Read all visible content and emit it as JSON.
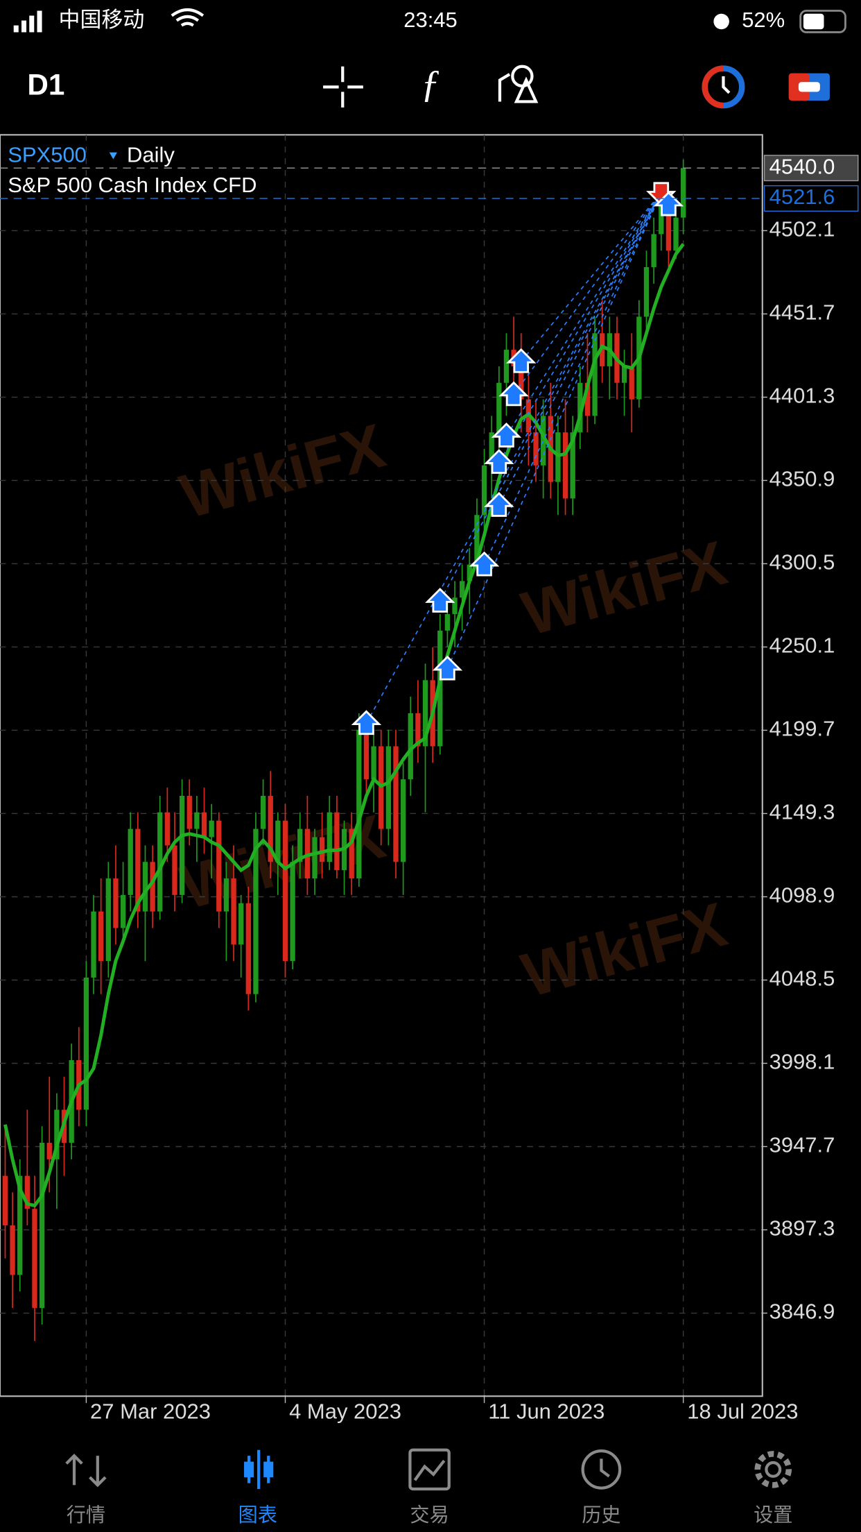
{
  "status_bar": {
    "carrier": "中国移动",
    "time": "23:45",
    "battery": "52%"
  },
  "toolbar": {
    "timeframe": "D1"
  },
  "chart_data": {
    "type": "candlestick",
    "symbol": "SPX500",
    "period": "Daily",
    "description": "S&P 500 Cash Index CFD",
    "watermark": "WikiFX",
    "up_color": "#1f9a1f",
    "down_color": "#d8291c",
    "grid": true,
    "xlim": [
      -0.7,
      102.6
    ],
    "ylim": [
      3797.2,
      4560.1
    ],
    "xticks": [
      {
        "value": 11,
        "label": "27 Mar 2023"
      },
      {
        "value": 38,
        "label": "4 May 2023"
      },
      {
        "value": 65,
        "label": "11 Jun 2023"
      },
      {
        "value": 92,
        "label": "18 Jul 2023"
      }
    ],
    "yticks": [
      4502.1,
      4451.7,
      4401.3,
      4350.9,
      4300.5,
      4250.1,
      4199.7,
      4149.3,
      4098.9,
      4048.5,
      3998.1,
      3947.7,
      3897.3,
      3846.9
    ],
    "price_lines": [
      {
        "value": 4540,
        "label": "4540.0",
        "color": "#9a9a9a"
      },
      {
        "value": 4521.6,
        "label": "4521.6",
        "color": "#1e6fd9"
      }
    ],
    "ohlc": [
      [
        3930,
        3960,
        3880,
        3900
      ],
      [
        3900,
        3920,
        3850,
        3870
      ],
      [
        3870,
        3940,
        3860,
        3930
      ],
      [
        3930,
        3970,
        3900,
        3910
      ],
      [
        3910,
        3930,
        3830,
        3850
      ],
      [
        3850,
        3960,
        3840,
        3950
      ],
      [
        3950,
        3990,
        3920,
        3940
      ],
      [
        3940,
        3980,
        3910,
        3970
      ],
      [
        3970,
        3990,
        3930,
        3950
      ],
      [
        3950,
        4010,
        3940,
        4000
      ],
      [
        4000,
        4020,
        3960,
        3970
      ],
      [
        3970,
        4060,
        3960,
        4050
      ],
      [
        4050,
        4100,
        4040,
        4090
      ],
      [
        4090,
        4110,
        4040,
        4060
      ],
      [
        4060,
        4120,
        4050,
        4110
      ],
      [
        4110,
        4130,
        4070,
        4080
      ],
      [
        4080,
        4120,
        4070,
        4100
      ],
      [
        4100,
        4150,
        4090,
        4140
      ],
      [
        4140,
        4150,
        4080,
        4090
      ],
      [
        4090,
        4130,
        4060,
        4120
      ],
      [
        4120,
        4130,
        4080,
        4090
      ],
      [
        4090,
        4160,
        4085,
        4150
      ],
      [
        4150,
        4165,
        4120,
        4130
      ],
      [
        4130,
        4150,
        4090,
        4100
      ],
      [
        4100,
        4170,
        4095,
        4160
      ],
      [
        4160,
        4170,
        4130,
        4140
      ],
      [
        4140,
        4160,
        4120,
        4150
      ],
      [
        4150,
        4165,
        4125,
        4135
      ],
      [
        4135,
        4155,
        4110,
        4145
      ],
      [
        4145,
        4150,
        4080,
        4090
      ],
      [
        4090,
        4120,
        4060,
        4110
      ],
      [
        4110,
        4130,
        4060,
        4070
      ],
      [
        4070,
        4100,
        4050,
        4095
      ],
      [
        4095,
        4105,
        4030,
        4040
      ],
      [
        4040,
        4150,
        4035,
        4140
      ],
      [
        4140,
        4170,
        4130,
        4160
      ],
      [
        4160,
        4175,
        4110,
        4120
      ],
      [
        4120,
        4150,
        4100,
        4145
      ],
      [
        4145,
        4155,
        4050,
        4060
      ],
      [
        4060,
        4130,
        4055,
        4120
      ],
      [
        4120,
        4150,
        4110,
        4140
      ],
      [
        4140,
        4160,
        4100,
        4110
      ],
      [
        4110,
        4140,
        4100,
        4135
      ],
      [
        4135,
        4150,
        4110,
        4120
      ],
      [
        4120,
        4160,
        4115,
        4150
      ],
      [
        4150,
        4160,
        4110,
        4115
      ],
      [
        4115,
        4145,
        4100,
        4140
      ],
      [
        4140,
        4150,
        4100,
        4110
      ],
      [
        4110,
        4210,
        4105,
        4200
      ],
      [
        4200,
        4210,
        4160,
        4170
      ],
      [
        4170,
        4200,
        4150,
        4190
      ],
      [
        4190,
        4200,
        4130,
        4140
      ],
      [
        4140,
        4200,
        4130,
        4190
      ],
      [
        4190,
        4200,
        4110,
        4120
      ],
      [
        4120,
        4180,
        4100,
        4170
      ],
      [
        4170,
        4220,
        4160,
        4210
      ],
      [
        4210,
        4230,
        4180,
        4190
      ],
      [
        4190,
        4240,
        4150,
        4230
      ],
      [
        4230,
        4250,
        4180,
        4190
      ],
      [
        4190,
        4270,
        4185,
        4260
      ],
      [
        4260,
        4280,
        4250,
        4270
      ],
      [
        4270,
        4290,
        4250,
        4280
      ],
      [
        4280,
        4300,
        4260,
        4290
      ],
      [
        4290,
        4310,
        4270,
        4300
      ],
      [
        4300,
        4340,
        4295,
        4330
      ],
      [
        4330,
        4370,
        4320,
        4360
      ],
      [
        4360,
        4390,
        4340,
        4380
      ],
      [
        4380,
        4420,
        4370,
        4410
      ],
      [
        4410,
        4440,
        4390,
        4430
      ],
      [
        4430,
        4450,
        4400,
        4420
      ],
      [
        4420,
        4440,
        4380,
        4400
      ],
      [
        4400,
        4420,
        4360,
        4380
      ],
      [
        4380,
        4400,
        4350,
        4360
      ],
      [
        4360,
        4400,
        4340,
        4390
      ],
      [
        4390,
        4410,
        4340,
        4350
      ],
      [
        4350,
        4390,
        4330,
        4380
      ],
      [
        4380,
        4400,
        4330,
        4340
      ],
      [
        4340,
        4390,
        4330,
        4380
      ],
      [
        4380,
        4420,
        4370,
        4410
      ],
      [
        4410,
        4440,
        4380,
        4390
      ],
      [
        4390,
        4450,
        4385,
        4440
      ],
      [
        4440,
        4460,
        4410,
        4420
      ],
      [
        4420,
        4450,
        4400,
        4440
      ],
      [
        4440,
        4450,
        4400,
        4410
      ],
      [
        4410,
        4430,
        4390,
        4420
      ],
      [
        4420,
        4440,
        4380,
        4400
      ],
      [
        4400,
        4460,
        4395,
        4450
      ],
      [
        4450,
        4490,
        4440,
        4480
      ],
      [
        4480,
        4510,
        4470,
        4500
      ],
      [
        4500,
        4530,
        4490,
        4520
      ],
      [
        4520,
        4530,
        4480,
        4490
      ],
      [
        4490,
        4520,
        4485,
        4510
      ],
      [
        4510,
        4545,
        4500,
        4540
      ]
    ],
    "ma": {
      "color": "#22b022",
      "values": [
        3961,
        3940,
        3922,
        3913,
        3912,
        3918,
        3932,
        3948,
        3962,
        3975,
        3985,
        3988,
        3995,
        4015,
        4040,
        4060,
        4072,
        4085,
        4095,
        4102,
        4108,
        4116,
        4125,
        4132,
        4136,
        4137,
        4136,
        4135,
        4132,
        4130,
        4125,
        4120,
        4115,
        4118,
        4128,
        4133,
        4128,
        4120,
        4116,
        4119,
        4122,
        4124,
        4125,
        4126,
        4127,
        4127,
        4128,
        4132,
        4145,
        4160,
        4170,
        4166,
        4168,
        4175,
        4182,
        4188,
        4192,
        4195,
        4210,
        4230,
        4245,
        4260,
        4275,
        4290,
        4302,
        4318,
        4335,
        4352,
        4366,
        4378,
        4388,
        4391,
        4386,
        4378,
        4370,
        4366,
        4367,
        4375,
        4390,
        4408,
        4424,
        4432,
        4430,
        4424,
        4420,
        4419,
        4425,
        4440,
        4455,
        4468,
        4478,
        4488,
        4494
      ]
    },
    "buy_markers": [
      {
        "x": 49,
        "price": 4204
      },
      {
        "x": 59,
        "price": 4278
      },
      {
        "x": 60,
        "price": 4237
      },
      {
        "x": 65,
        "price": 4300
      },
      {
        "x": 67,
        "price": 4336
      },
      {
        "x": 67,
        "price": 4362
      },
      {
        "x": 68,
        "price": 4378
      },
      {
        "x": 69,
        "price": 4403
      },
      {
        "x": 70,
        "price": 4423
      },
      {
        "x": 90,
        "price": 4518
      }
    ],
    "sell_markers": [
      {
        "x": 89,
        "price": 4525
      }
    ]
  },
  "tab_bar": {
    "items": [
      "行情",
      "图表",
      "交易",
      "历史",
      "设置"
    ],
    "active": 1
  }
}
